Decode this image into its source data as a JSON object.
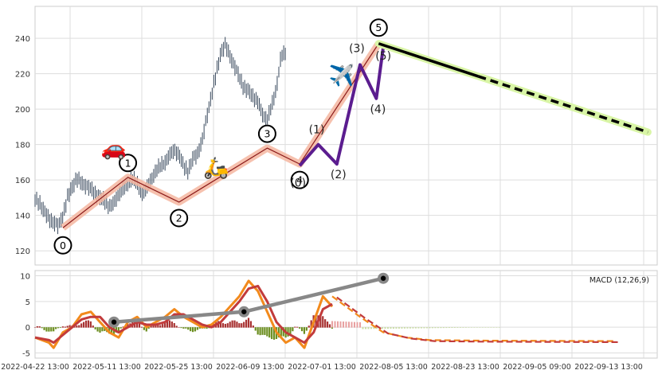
{
  "chart_data": [
    {
      "type": "candlestick",
      "panel": "price",
      "ylim": [
        112,
        258
      ],
      "yticks": [
        120,
        140,
        160,
        180,
        200,
        220,
        240
      ],
      "xlabels": [
        "2022-04-22 13:00",
        "2022-05-11 13:00",
        "2022-05-25 13:00",
        "2022-06-09 13:00",
        "2022-07-01 13:00",
        "2022-08-05 13:00",
        "2022-08-23 13:00",
        "2022-09-05 09:00",
        "2022-09-13 13:00"
      ],
      "price_path": [
        [
          0,
          149
        ],
        [
          2,
          147
        ],
        [
          4,
          142
        ],
        [
          6,
          138
        ],
        [
          8,
          136
        ],
        [
          10,
          134
        ],
        [
          12,
          140
        ],
        [
          14,
          150
        ],
        [
          16,
          156
        ],
        [
          18,
          161
        ],
        [
          20,
          158
        ],
        [
          22,
          157
        ],
        [
          24,
          155
        ],
        [
          26,
          152
        ],
        [
          28,
          150
        ],
        [
          30,
          148
        ],
        [
          32,
          145
        ],
        [
          34,
          147
        ],
        [
          36,
          152
        ],
        [
          38,
          155
        ],
        [
          40,
          158
        ],
        [
          42,
          161
        ],
        [
          44,
          158
        ],
        [
          46,
          152
        ],
        [
          48,
          155
        ],
        [
          50,
          160
        ],
        [
          52,
          165
        ],
        [
          54,
          168
        ],
        [
          56,
          170
        ],
        [
          58,
          174
        ],
        [
          60,
          177
        ],
        [
          62,
          174
        ],
        [
          64,
          168
        ],
        [
          66,
          165
        ],
        [
          68,
          172
        ],
        [
          70,
          175
        ],
        [
          72,
          182
        ],
        [
          74,
          196
        ],
        [
          76,
          208
        ],
        [
          78,
          220
        ],
        [
          80,
          232
        ],
        [
          82,
          236
        ],
        [
          84,
          230
        ],
        [
          86,
          224
        ],
        [
          88,
          218
        ],
        [
          90,
          212
        ],
        [
          92,
          210
        ],
        [
          94,
          207
        ],
        [
          96,
          204
        ],
        [
          98,
          197
        ],
        [
          100,
          194
        ],
        [
          102,
          202
        ],
        [
          104,
          212
        ],
        [
          106,
          230
        ],
        [
          108,
          232
        ]
      ],
      "elliott_primary": {
        "labels": [
          "0",
          "1",
          "2",
          "3",
          "4",
          "5"
        ],
        "points": [
          [
            12,
            133
          ],
          [
            40,
            161.5
          ],
          [
            62,
            147.5
          ],
          [
            100,
            178
          ],
          [
            114,
            169
          ],
          [
            148,
            237
          ]
        ]
      },
      "elliott_minor": {
        "labels": [
          "(0)",
          "(1)",
          "(2)",
          "(3)",
          "(4)",
          "(5)"
        ],
        "points": [
          [
            114,
            168
          ],
          [
            122,
            180
          ],
          [
            130,
            169
          ],
          [
            140,
            225
          ],
          [
            147,
            206
          ],
          [
            150,
            235
          ]
        ]
      },
      "projection": {
        "from": [
          148,
          237
        ],
        "to": [
          264,
          187
        ]
      },
      "emojis": [
        {
          "glyph": "🚗",
          "x": 34,
          "y": 174
        },
        {
          "glyph": "🛵",
          "x": 78,
          "y": 163
        },
        {
          "glyph": "✈️",
          "x": 132,
          "y": 215
        }
      ]
    },
    {
      "type": "macd",
      "panel": "macd",
      "legend": "MACD (12,26,9)",
      "ylim": [
        -6,
        11
      ],
      "yticks": [
        -5,
        0,
        5,
        10
      ],
      "macd_path": [
        [
          0,
          -2
        ],
        [
          6,
          -3
        ],
        [
          8,
          -4
        ],
        [
          12,
          -1
        ],
        [
          16,
          0
        ],
        [
          20,
          2.5
        ],
        [
          24,
          3
        ],
        [
          28,
          1
        ],
        [
          32,
          -1
        ],
        [
          36,
          -2
        ],
        [
          40,
          1
        ],
        [
          44,
          2
        ],
        [
          48,
          0
        ],
        [
          52,
          1
        ],
        [
          56,
          2
        ],
        [
          60,
          3.5
        ],
        [
          64,
          2
        ],
        [
          68,
          1
        ],
        [
          72,
          0
        ],
        [
          76,
          0.5
        ],
        [
          80,
          2
        ],
        [
          84,
          4
        ],
        [
          88,
          6
        ],
        [
          92,
          9
        ],
        [
          96,
          7
        ],
        [
          100,
          3
        ],
        [
          104,
          -1
        ],
        [
          108,
          -3
        ],
        [
          112,
          -2
        ],
        [
          116,
          -4
        ],
        [
          120,
          1
        ],
        [
          124,
          6
        ],
        [
          128,
          4
        ]
      ],
      "signal_path": [
        [
          0,
          -2
        ],
        [
          6,
          -2.5
        ],
        [
          8,
          -3
        ],
        [
          12,
          -1.5
        ],
        [
          16,
          0
        ],
        [
          20,
          1.5
        ],
        [
          24,
          2
        ],
        [
          28,
          2
        ],
        [
          32,
          0
        ],
        [
          36,
          -1
        ],
        [
          40,
          0
        ],
        [
          44,
          1
        ],
        [
          48,
          0.5
        ],
        [
          52,
          0.5
        ],
        [
          56,
          1
        ],
        [
          60,
          2.5
        ],
        [
          64,
          2.5
        ],
        [
          68,
          1.5
        ],
        [
          72,
          0.5
        ],
        [
          76,
          0
        ],
        [
          80,
          1
        ],
        [
          84,
          3
        ],
        [
          88,
          5
        ],
        [
          92,
          7.5
        ],
        [
          96,
          8
        ],
        [
          100,
          5
        ],
        [
          104,
          1
        ],
        [
          108,
          -1
        ],
        [
          112,
          -2
        ],
        [
          116,
          -3
        ],
        [
          120,
          -1
        ],
        [
          124,
          3.5
        ],
        [
          128,
          4.5
        ]
      ],
      "projected_macd": [
        [
          128,
          6
        ],
        [
          140,
          2
        ],
        [
          150,
          -1
        ],
        [
          160,
          -2
        ],
        [
          170,
          -2.5
        ],
        [
          190,
          -2.6
        ],
        [
          250,
          -2.7
        ]
      ],
      "divergence_points": [
        [
          34,
          1
        ],
        [
          90,
          3
        ],
        [
          150,
          9.5
        ]
      ]
    }
  ]
}
